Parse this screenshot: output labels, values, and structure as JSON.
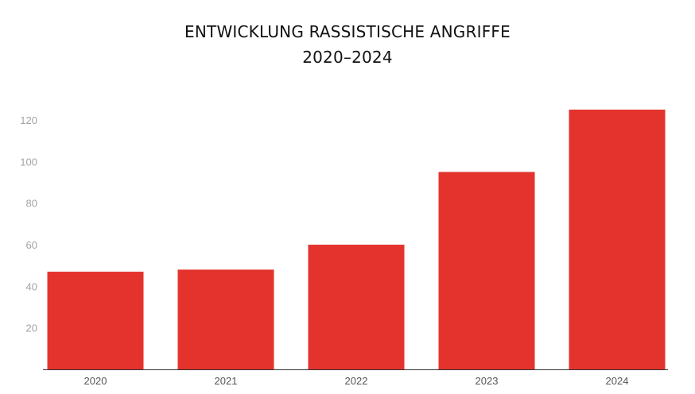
{
  "chart_data": {
    "type": "bar",
    "title_line1": "ENTWICKLUNG RASSISTISCHE ANGRIFFE",
    "title_line2": "2020–2024",
    "xlabel": "",
    "ylabel": "",
    "categories": [
      "2020",
      "2021",
      "2022",
      "2023",
      "2024"
    ],
    "values": [
      47,
      48,
      60,
      95,
      125
    ],
    "yticks": [
      20,
      40,
      60,
      80,
      100,
      120
    ],
    "ylim": [
      0,
      130
    ],
    "grid": false,
    "legend": "none",
    "colors": {
      "bar": "#e4332d",
      "axis": "#333333",
      "ytick": "#a3a3a3",
      "xtick": "#555555"
    }
  }
}
